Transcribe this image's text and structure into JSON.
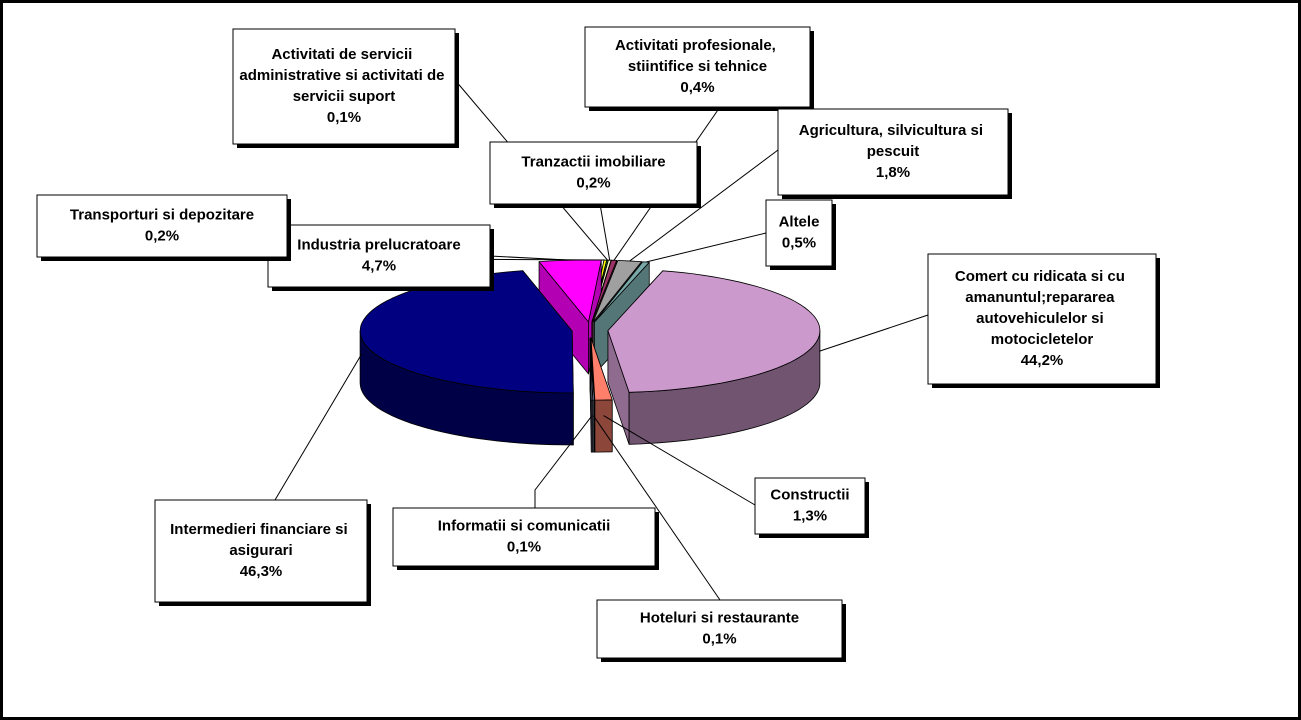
{
  "chart_data": {
    "type": "pie",
    "categories": [
      "Comert cu ridicata si cu amanuntul;repararea autovehiculelor si motocicletelor",
      "Constructii",
      "Hoteluri si restaurante",
      "Informatii si comunicatii",
      "Intermedieri financiare si asigurari",
      "Industria prelucratoare",
      "Transporturi si depozitare",
      "Activitati de servicii administrative si activitati de servicii suport",
      "Tranzactii imobiliare",
      "Activitati profesionale, stiintifice si tehnice",
      "Agricultura, silvicultura si pescuit",
      "Altele"
    ],
    "values": [
      44.2,
      1.3,
      0.1,
      0.1,
      46.3,
      4.7,
      0.2,
      0.1,
      0.2,
      0.4,
      1.8,
      0.5
    ],
    "value_labels": [
      "44,2%",
      "1,3%",
      "0,1%",
      "0,1%",
      "46,3%",
      "4,7%",
      "0,2%",
      "0,1%",
      "0,2%",
      "0,4%",
      "1,8%",
      "0,5%"
    ],
    "colors": [
      "#cc99cc",
      "#ff7f6a",
      "#ccccff",
      "#99aacc",
      "#000080",
      "#ff00ff",
      "#ffff00",
      "#33cc33",
      "#ffffcc",
      "#993366",
      "#a0a0a0",
      "#78a8a8"
    ]
  }
}
